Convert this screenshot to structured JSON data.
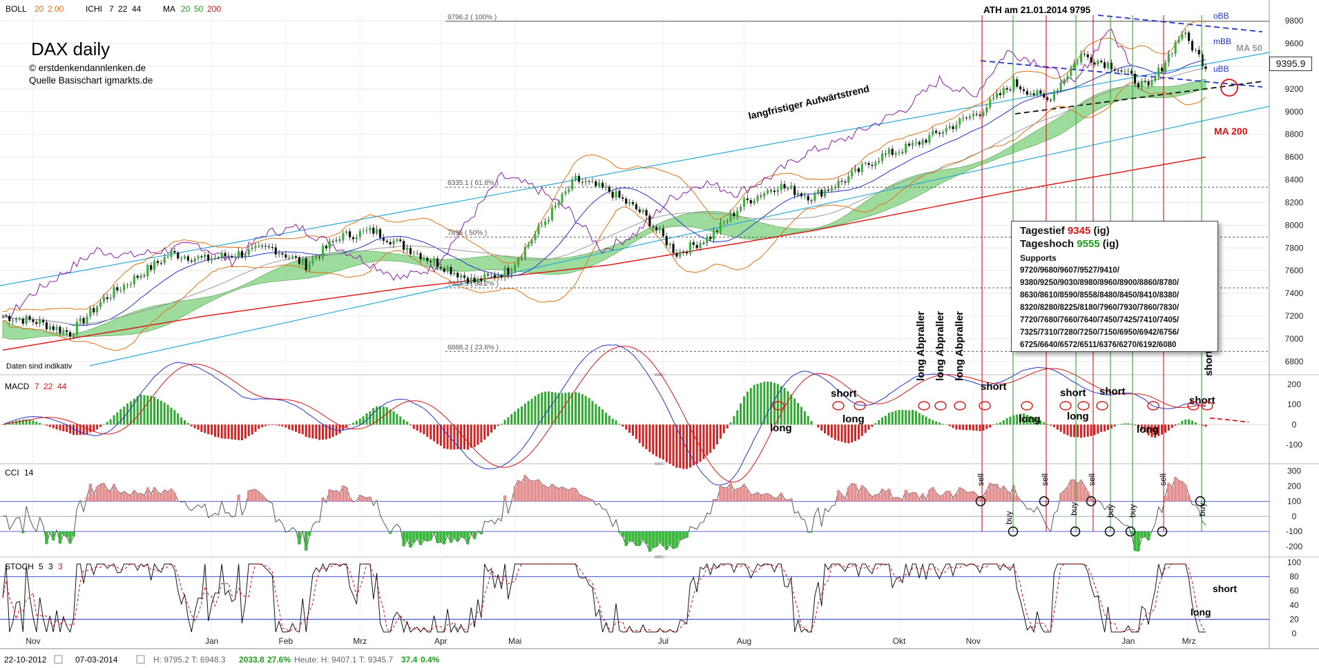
{
  "header": {
    "boll": {
      "label": "BOLL",
      "p1": "20",
      "p2": "2.00"
    },
    "ichi": {
      "label": "ICHI",
      "p1": "7",
      "p2": "22",
      "p3": "44"
    },
    "ma": {
      "label": "MA",
      "p1": "20",
      "p2": "50",
      "p3": "200"
    }
  },
  "title": {
    "main": "DAX daily",
    "copyright": "© erstdenkendannlenken.de",
    "source": "Quelle Basischart igmarkts.de",
    "disclaimer": "Daten sind indikativ"
  },
  "annotations": {
    "ath": "ATH am 21.01.2014 9795",
    "trend": "langfristiger Aufwärtstrend",
    "obb": "oBB",
    "mbb": "mBB",
    "ubb": "uBB",
    "ma50": "MA 50",
    "ma200": "MA 200",
    "current_price": "9395.9"
  },
  "fib_levels": [
    {
      "label": "9796.2 ( 100% )",
      "value": 9796
    },
    {
      "label": "8335.1 ( 61.8% )",
      "value": 8335
    },
    {
      "label": "7895 ( 50% )",
      "value": 7895
    },
    {
      "label": "7448.5 ( 38.2% )",
      "value": 7448
    },
    {
      "label": "6888.2 ( 23.6% )",
      "value": 6888
    }
  ],
  "infobox": {
    "tagestief_label": "Tagestief",
    "tagestief_value": "9345",
    "tagestief_suffix": "(ig)",
    "tageshoch_label": "Tageshoch",
    "tageshoch_value": "9555",
    "tageshoch_suffix": "(ig)",
    "supports_title": "Supports",
    "lines": [
      "9720/9680/9607/9527/9410/",
      "9380/9250/9030/8980/8960/8900/8860/8780/",
      "8630/8610/8590/8558/8480/8450/8410/8380/",
      "8320/8280/8225/8180/7960/7930/7860/7830/",
      "7720/7680/7660/7640/7450/7425/7410/7405/",
      "7325/7310/7280/7250/7150/6950/6942/6756/",
      "6725/6640/6572/6511/6376/6270/6192/6080"
    ]
  },
  "panels": {
    "macd": {
      "label": "MACD",
      "p1": "7",
      "p2": "22",
      "p3": "44"
    },
    "cci": {
      "label": "CCI",
      "p1": "14"
    },
    "stoch": {
      "label": "STOCH",
      "p1": "5",
      "p2": "3",
      "p3": "3"
    }
  },
  "signals": {
    "macd": [
      "long",
      "short",
      "long",
      "long Abpraller",
      "long Abpraller",
      "long Abpraller",
      "short",
      "long",
      "short",
      "long",
      "short",
      "long",
      "short",
      "short Abpraller"
    ],
    "cci": [
      "sell",
      "buy",
      "sell",
      "buy",
      "sell",
      "buy",
      "buy",
      "sell",
      "buy"
    ],
    "stoch": [
      "short",
      "long"
    ]
  },
  "footer": {
    "date_from": "22-10-2012",
    "date_to": "07-03-2014",
    "stats": "H: 9795.2  T: 6948.3",
    "change_abs": "2033.8",
    "change_pct": "27.6%",
    "today": "Heute: H: 9407.1  T: 9345.7",
    "today_abs": "37.4",
    "today_pct": "0.4%"
  },
  "chart_data": [
    {
      "type": "line",
      "title": "DAX daily",
      "x_ticks": [
        "Nov",
        "Jan",
        "Feb",
        "Mrz",
        "Apr",
        "Mai",
        "Jul",
        "Aug",
        "Okt",
        "Nov",
        "Jan",
        "Mrz"
      ],
      "y_ticks": [
        6800,
        7000,
        7200,
        7400,
        7600,
        7800,
        8000,
        8200,
        8400,
        8600,
        8800,
        9000,
        9200,
        9400,
        9600,
        9800
      ],
      "ylim": [
        6750,
        9850
      ],
      "series": [
        {
          "name": "DAX",
          "x": [
            0,
            10,
            20,
            30,
            40,
            50,
            60,
            70,
            80,
            90,
            100,
            110,
            120,
            130,
            140,
            150,
            160,
            170,
            180,
            190,
            200,
            210,
            220,
            230,
            240,
            250,
            260,
            270,
            280,
            290,
            300,
            310,
            320,
            330,
            340,
            350,
            357
          ],
          "values": [
            7200,
            7150,
            7050,
            7350,
            7550,
            7750,
            7700,
            7750,
            7800,
            7650,
            7900,
            7950,
            7800,
            7650,
            7500,
            7600,
            8000,
            8400,
            8300,
            8100,
            7750,
            7900,
            8200,
            8350,
            8250,
            8400,
            8600,
            8700,
            8850,
            9000,
            9250,
            9100,
            9500,
            9400,
            9200,
            9700,
            9400
          ]
        },
        {
          "name": "MA 200",
          "x": [
            0,
            60,
            120,
            180,
            240,
            300,
            357
          ],
          "values": [
            6900,
            7200,
            7450,
            7650,
            7950,
            8300,
            8600
          ]
        }
      ]
    },
    {
      "type": "bar",
      "title": "MACD",
      "y_ticks": [
        -100,
        0,
        100,
        200
      ],
      "ylim": [
        -180,
        230
      ]
    },
    {
      "type": "line",
      "title": "CCI",
      "y_ticks": [
        -200,
        -100,
        0,
        100,
        200,
        300
      ],
      "ylim": [
        -250,
        330
      ]
    },
    {
      "type": "line",
      "title": "STOCH",
      "y_ticks": [
        0,
        20,
        40,
        60,
        80,
        100
      ],
      "ylim": [
        -2,
        104
      ]
    }
  ]
}
